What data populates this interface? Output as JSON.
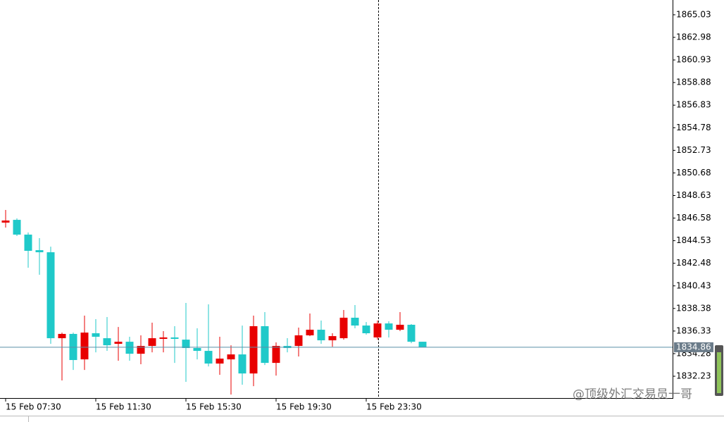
{
  "chart_data": {
    "type": "candlestick",
    "categories": [
      "15 Feb 07:30",
      null,
      null,
      null,
      null,
      null,
      null,
      null,
      "15 Feb 11:30",
      null,
      null,
      null,
      null,
      null,
      null,
      null,
      "15 Feb 15:30",
      null,
      null,
      null,
      null,
      null,
      null,
      null,
      "15 Feb 19:30",
      null,
      null,
      null,
      null,
      null,
      null,
      null,
      "15 Feb 23:30",
      null,
      null,
      null,
      null,
      null
    ],
    "open": [
      1846.17,
      1846.42,
      1845.08,
      1843.67,
      1843.48,
      1835.68,
      1836.07,
      1833.76,
      1836.13,
      1835.68,
      1835.17,
      1835.36,
      1834.27,
      1834.98,
      1835.62,
      1835.75,
      1835.55,
      1834.79,
      1834.53,
      1833.38,
      1833.76,
      1834.21,
      1832.48,
      1836.77,
      1833.44,
      1834.98,
      1834.98,
      1835.94,
      1836.45,
      1835.49,
      1835.68,
      1837.54,
      1836.83,
      1835.75,
      1837.02,
      1836.45,
      1836.9,
      1835.36
    ],
    "high": [
      1847.32,
      1846.55,
      1845.27,
      1844.76,
      1843.99,
      1836.19,
      1836.19,
      1837.73,
      1837.41,
      1837.6,
      1836.7,
      1835.81,
      1835.94,
      1837.09,
      1836.32,
      1836.77,
      1838.88,
      1836.58,
      1838.75,
      1835.81,
      1835.04,
      1836.83,
      1837.73,
      1838.05,
      1835.3,
      1835.68,
      1836.64,
      1837.92,
      1837.28,
      1836.13,
      1838.24,
      1838.69,
      1837.15,
      1837.28,
      1837.22,
      1838.05,
      1836.96,
      1835.36
    ],
    "low": [
      1845.72,
      1844.95,
      1842.08,
      1841.44,
      1835.17,
      1831.85,
      1832.8,
      1832.8,
      1834.4,
      1834.53,
      1833.64,
      1833.64,
      1833.32,
      1834.4,
      1834.4,
      1833.44,
      1831.72,
      1833.76,
      1833.12,
      1832.36,
      1830.57,
      1831.46,
      1831.33,
      1833.25,
      1832.29,
      1834.4,
      1834.02,
      1835.87,
      1835.17,
      1834.91,
      1835.55,
      1836.58,
      1836.0,
      1835.55,
      1835.75,
      1836.32,
      1835.23,
      1834.85
    ],
    "close": [
      1846.36,
      1845.08,
      1843.61,
      1843.48,
      1835.68,
      1836.07,
      1833.7,
      1836.19,
      1835.81,
      1835.04,
      1835.36,
      1834.27,
      1834.98,
      1835.68,
      1835.75,
      1835.62,
      1834.79,
      1834.53,
      1833.38,
      1833.83,
      1834.21,
      1832.48,
      1836.77,
      1833.44,
      1834.98,
      1834.79,
      1835.94,
      1836.45,
      1835.49,
      1835.87,
      1837.54,
      1836.83,
      1836.13,
      1837.02,
      1836.45,
      1836.9,
      1835.36,
      1834.85
    ],
    "up_color": "#e80000",
    "down_color": "#1fc9c9",
    "ylim": [
      1830.25,
      1866.37
    ],
    "yticks": [
      1865.03,
      1862.98,
      1860.93,
      1858.88,
      1856.83,
      1854.78,
      1852.73,
      1850.68,
      1848.63,
      1846.58,
      1844.53,
      1842.48,
      1840.43,
      1838.38,
      1836.33,
      1834.28,
      1832.23
    ],
    "current_price": 1834.86,
    "watermark": "@顶级外汇交易员一哥"
  }
}
